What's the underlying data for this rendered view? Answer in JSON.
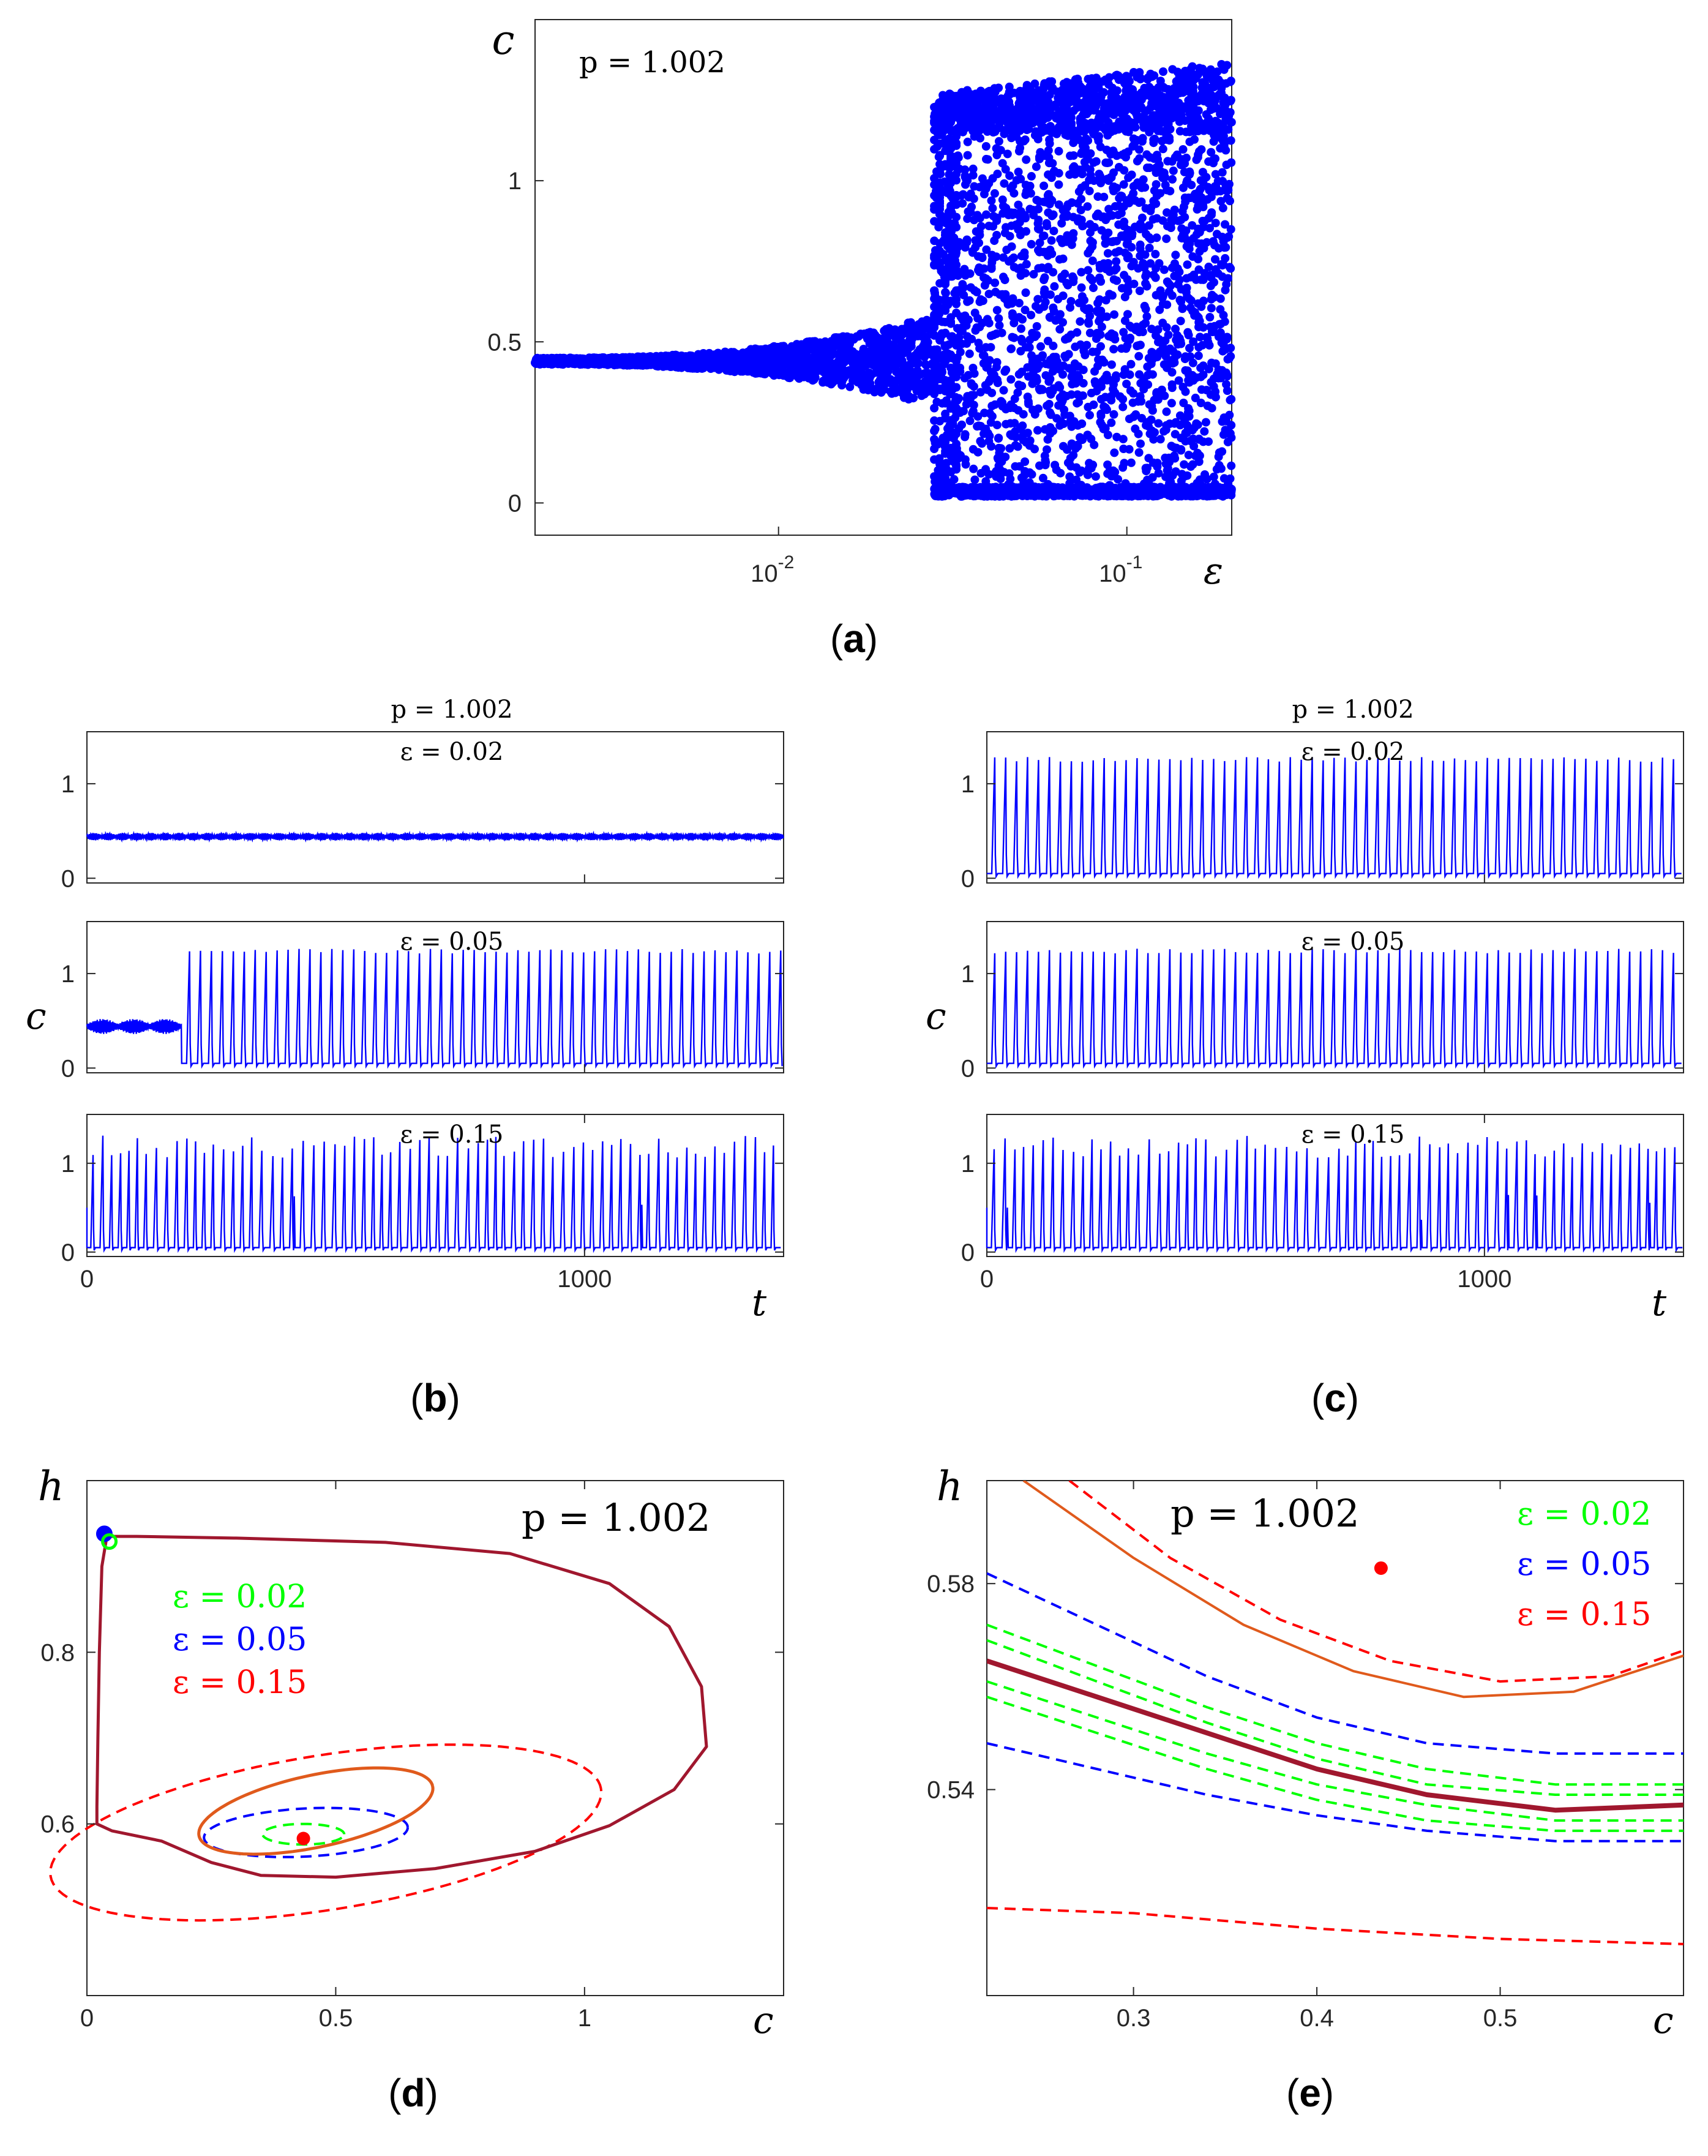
{
  "chart_data": [
    {
      "id": "a",
      "type": "scatter",
      "caption": {
        "open": "(",
        "letter": "a",
        "close": ")"
      },
      "annotation": "p = 1.002",
      "xlabel": "ε",
      "ylabel": "c",
      "xscale": "log",
      "xlim": [
        0.002,
        0.2
      ],
      "ylim": [
        -0.1,
        1.5
      ],
      "xticks": [
        {
          "value": 0.01,
          "base": "10",
          "exp": "-2"
        },
        {
          "value": 0.1,
          "base": "10",
          "exp": "-1"
        }
      ],
      "yticks": [
        0,
        0.5,
        1
      ],
      "color": "#0000ff",
      "bifurcation": {
        "equilibrium": 0.44,
        "onset_epsilon": 0.028,
        "max_epsilon": 0.2,
        "min_c": 0.02,
        "max_c": 1.4
      }
    },
    {
      "id": "b",
      "type": "line",
      "caption": {
        "open": "(",
        "letter": "b",
        "close": ")"
      },
      "header": "p = 1.002",
      "xlabel": "t",
      "ylabel": "c",
      "xlim": [
        0,
        1400
      ],
      "ylim": [
        -0.05,
        1.55
      ],
      "xticks": [
        0,
        1000
      ],
      "yticks": [
        0,
        1
      ],
      "color": "#0000ff",
      "series": [
        {
          "name": "ε = 0.02",
          "kind": "small_oscillation",
          "mean": 0.44,
          "amplitude": 0.04
        },
        {
          "name": "ε = 0.05",
          "kind": "transient_then_spikes",
          "mean": 0.44,
          "transient_end": 190,
          "period": 22,
          "peak": 1.25
        },
        {
          "name": "ε = 0.15",
          "kind": "irregular_spikes",
          "period": 19,
          "peak": 1.25
        }
      ]
    },
    {
      "id": "c",
      "type": "line",
      "caption": {
        "open": "(",
        "letter": "c",
        "close": ")"
      },
      "header": "p = 1.002",
      "xlabel": "t",
      "ylabel": "c",
      "xlim": [
        0,
        1400
      ],
      "ylim": [
        -0.05,
        1.55
      ],
      "xticks": [
        0,
        1000
      ],
      "yticks": [
        0,
        1
      ],
      "color": "#0000ff",
      "series": [
        {
          "name": "ε = 0.02",
          "kind": "regular_spikes",
          "period": 22,
          "peak": 1.27
        },
        {
          "name": "ε = 0.05",
          "kind": "regular_spikes",
          "period": 22,
          "peak": 1.25
        },
        {
          "name": "ε = 0.15",
          "kind": "irregular_spikes",
          "period": 19,
          "peak": 1.25
        }
      ]
    },
    {
      "id": "d",
      "type": "line",
      "caption": {
        "open": "(",
        "letter": "d",
        "close": ")"
      },
      "annotation": "p = 1.002",
      "xlabel": "c",
      "ylabel": "h",
      "xlim": [
        0,
        1.4
      ],
      "ylim": [
        0.4,
        1.0
      ],
      "xticks": [
        0,
        0.5,
        1
      ],
      "yticks": [
        0.6,
        0.8
      ],
      "legend": [
        {
          "label": "ε = 0.02",
          "color": "#00ff00"
        },
        {
          "label": "ε = 0.05",
          "color": "#0000ff"
        },
        {
          "label": "ε = 0.15",
          "color": "#ff0000"
        }
      ],
      "equilibrium_point": {
        "c": 0.435,
        "h": 0.583,
        "color": "#ff0000"
      },
      "limit_cycle_color": "#a0172e",
      "orbit_color": "#e05a1c",
      "limit_cycle_points": [
        [
          0.04,
          0.935
        ],
        [
          0.03,
          0.9
        ],
        [
          0.025,
          0.8
        ],
        [
          0.022,
          0.7
        ],
        [
          0.02,
          0.62
        ],
        [
          0.02,
          0.6
        ],
        [
          0.05,
          0.592
        ],
        [
          0.15,
          0.58
        ],
        [
          0.25,
          0.555
        ],
        [
          0.35,
          0.54
        ],
        [
          0.5,
          0.538
        ],
        [
          0.7,
          0.548
        ],
        [
          0.9,
          0.568
        ],
        [
          1.05,
          0.598
        ],
        [
          1.18,
          0.64
        ],
        [
          1.245,
          0.69
        ],
        [
          1.235,
          0.76
        ],
        [
          1.17,
          0.83
        ],
        [
          1.05,
          0.88
        ],
        [
          0.85,
          0.915
        ],
        [
          0.6,
          0.928
        ],
        [
          0.3,
          0.933
        ],
        [
          0.1,
          0.935
        ],
        [
          0.04,
          0.935
        ]
      ],
      "orbit_ellipse": {
        "cx": 0.46,
        "cy": 0.615,
        "rx": 0.24,
        "ry": 0.042,
        "angle": -12
      },
      "dashed_ellipses": [
        {
          "color": "#00ff00",
          "cx": 0.435,
          "cy": 0.588,
          "rx": 0.082,
          "ry": 0.012,
          "angle": 0
        },
        {
          "color": "#0000ff",
          "cx": 0.44,
          "cy": 0.59,
          "rx": 0.205,
          "ry": 0.028,
          "angle": -3
        },
        {
          "color": "#ff0000",
          "cx": 0.48,
          "cy": 0.59,
          "rx": 0.56,
          "ry": 0.09,
          "angle": -9
        }
      ],
      "start_markers": [
        {
          "c": 0.035,
          "h": 0.938,
          "color": "#0000ff",
          "filled": true
        },
        {
          "c": 0.045,
          "h": 0.929,
          "color": "#00ff00",
          "filled": false
        }
      ]
    },
    {
      "id": "e",
      "type": "line",
      "caption": {
        "open": "(",
        "letter": "e",
        "close": ")"
      },
      "annotation": "p = 1.002",
      "xlabel": "c",
      "ylabel": "h",
      "xlim": [
        0.22,
        0.6
      ],
      "ylim": [
        0.5,
        0.6
      ],
      "xticks": [
        0.3,
        0.4,
        0.5
      ],
      "yticks": [
        0.54,
        0.58
      ],
      "legend": [
        {
          "label": "ε = 0.02",
          "color": "#00ff00"
        },
        {
          "label": "ε = 0.05",
          "color": "#0000ff"
        },
        {
          "label": "ε = 0.15",
          "color": "#ff0000"
        }
      ],
      "equilibrium_point": {
        "c": 0.435,
        "h": 0.583,
        "color": "#ff0000"
      },
      "curves": [
        {
          "name": "orbit",
          "color": "#e05a1c",
          "dash": false,
          "width": 4,
          "points": [
            [
              0.24,
              0.6
            ],
            [
              0.3,
              0.585
            ],
            [
              0.36,
              0.572
            ],
            [
              0.42,
              0.563
            ],
            [
              0.48,
              0.558
            ],
            [
              0.54,
              0.559
            ],
            [
              0.6,
              0.566
            ]
          ]
        },
        {
          "name": "limit-cycle",
          "color": "#a0172e",
          "dash": false,
          "width": 8,
          "points": [
            [
              0.22,
              0.565
            ],
            [
              0.28,
              0.558
            ],
            [
              0.34,
              0.551
            ],
            [
              0.4,
              0.544
            ],
            [
              0.46,
              0.539
            ],
            [
              0.53,
              0.536
            ],
            [
              0.6,
              0.537
            ]
          ]
        },
        {
          "name": "red-upper",
          "color": "#ff0000",
          "dash": true,
          "width": 4,
          "points": [
            [
              0.265,
              0.6
            ],
            [
              0.32,
              0.585
            ],
            [
              0.38,
              0.573
            ],
            [
              0.44,
              0.565
            ],
            [
              0.5,
              0.561
            ],
            [
              0.56,
              0.562
            ],
            [
              0.6,
              0.567
            ]
          ]
        },
        {
          "name": "red-lower",
          "color": "#ff0000",
          "dash": true,
          "width": 4,
          "points": [
            [
              0.22,
              0.517
            ],
            [
              0.3,
              0.516
            ],
            [
              0.4,
              0.513
            ],
            [
              0.5,
              0.511
            ],
            [
              0.6,
              0.51
            ]
          ]
        },
        {
          "name": "blue-upper",
          "color": "#0000ff",
          "dash": true,
          "width": 4,
          "points": [
            [
              0.22,
              0.582
            ],
            [
              0.28,
              0.572
            ],
            [
              0.34,
              0.562
            ],
            [
              0.4,
              0.554
            ],
            [
              0.46,
              0.549
            ],
            [
              0.53,
              0.547
            ],
            [
              0.6,
              0.547
            ]
          ]
        },
        {
          "name": "blue-lower",
          "color": "#0000ff",
          "dash": true,
          "width": 4,
          "points": [
            [
              0.22,
              0.549
            ],
            [
              0.28,
              0.544
            ],
            [
              0.34,
              0.539
            ],
            [
              0.4,
              0.535
            ],
            [
              0.46,
              0.532
            ],
            [
              0.53,
              0.53
            ],
            [
              0.6,
              0.53
            ]
          ]
        },
        {
          "name": "green-1",
          "color": "#00ff00",
          "dash": true,
          "width": 4,
          "points": [
            [
              0.22,
              0.572
            ],
            [
              0.28,
              0.564
            ],
            [
              0.34,
              0.556
            ],
            [
              0.4,
              0.549
            ],
            [
              0.46,
              0.544
            ],
            [
              0.53,
              0.541
            ],
            [
              0.6,
              0.541
            ]
          ]
        },
        {
          "name": "green-2",
          "color": "#00ff00",
          "dash": true,
          "width": 4,
          "points": [
            [
              0.22,
              0.569
            ],
            [
              0.28,
              0.561
            ],
            [
              0.34,
              0.553
            ],
            [
              0.4,
              0.546
            ],
            [
              0.46,
              0.541
            ],
            [
              0.53,
              0.539
            ],
            [
              0.6,
              0.539
            ]
          ]
        },
        {
          "name": "green-3",
          "color": "#00ff00",
          "dash": true,
          "width": 4,
          "points": [
            [
              0.22,
              0.561
            ],
            [
              0.28,
              0.554
            ],
            [
              0.34,
              0.547
            ],
            [
              0.4,
              0.541
            ],
            [
              0.46,
              0.537
            ],
            [
              0.53,
              0.534
            ],
            [
              0.6,
              0.534
            ]
          ]
        },
        {
          "name": "green-4",
          "color": "#00ff00",
          "dash": true,
          "width": 4,
          "points": [
            [
              0.22,
              0.558
            ],
            [
              0.28,
              0.551
            ],
            [
              0.34,
              0.544
            ],
            [
              0.4,
              0.538
            ],
            [
              0.46,
              0.534
            ],
            [
              0.53,
              0.532
            ],
            [
              0.6,
              0.532
            ]
          ]
        }
      ]
    }
  ]
}
